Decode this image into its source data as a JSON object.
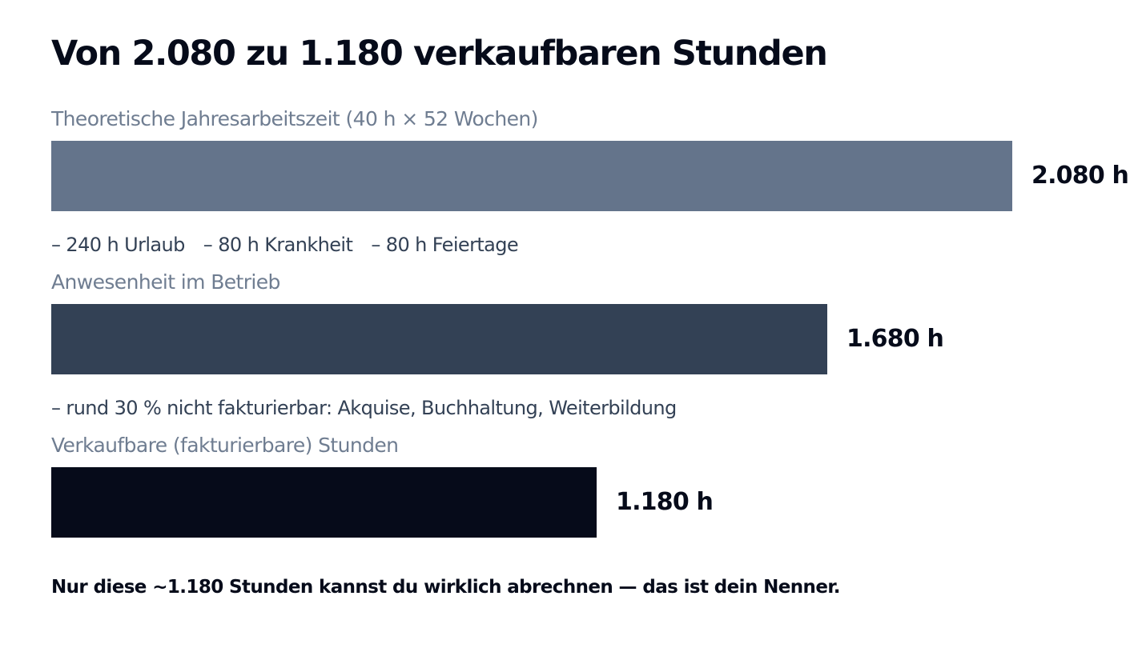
{
  "title": "Von 2.080 zu 1.180 verkaufbaren Stunden",
  "chart_data": {
    "type": "bar",
    "orientation": "horizontal",
    "title": "Von 2.080 zu 1.180 verkaufbaren Stunden",
    "unit": "h",
    "categories": [
      "Theoretische Jahresarbeitszeit (40 h × 52 Wochen)",
      "Anwesenheit im Betrieb",
      "Verkaufbare (fakturierbare) Stunden"
    ],
    "values": [
      2080,
      1680,
      1180
    ],
    "value_labels": [
      "2.080 h",
      "1.680 h",
      "1.180 h"
    ],
    "colors": [
      "#64748b",
      "#334155",
      "#060b1a"
    ],
    "xlim": [
      0,
      2080
    ],
    "grid": false,
    "annotations": [
      [
        "– 240 h Urlaub",
        "– 80 h Krankheit",
        "– 80 h Feiertage"
      ],
      [
        "– rund 30 % nicht fakturierbar: Akquise, Buchhaltung, Weiterbildung"
      ]
    ]
  },
  "note": "Nur diese ~1.180 Stunden kannst du wirklich abrechnen — das ist dein Nenner."
}
